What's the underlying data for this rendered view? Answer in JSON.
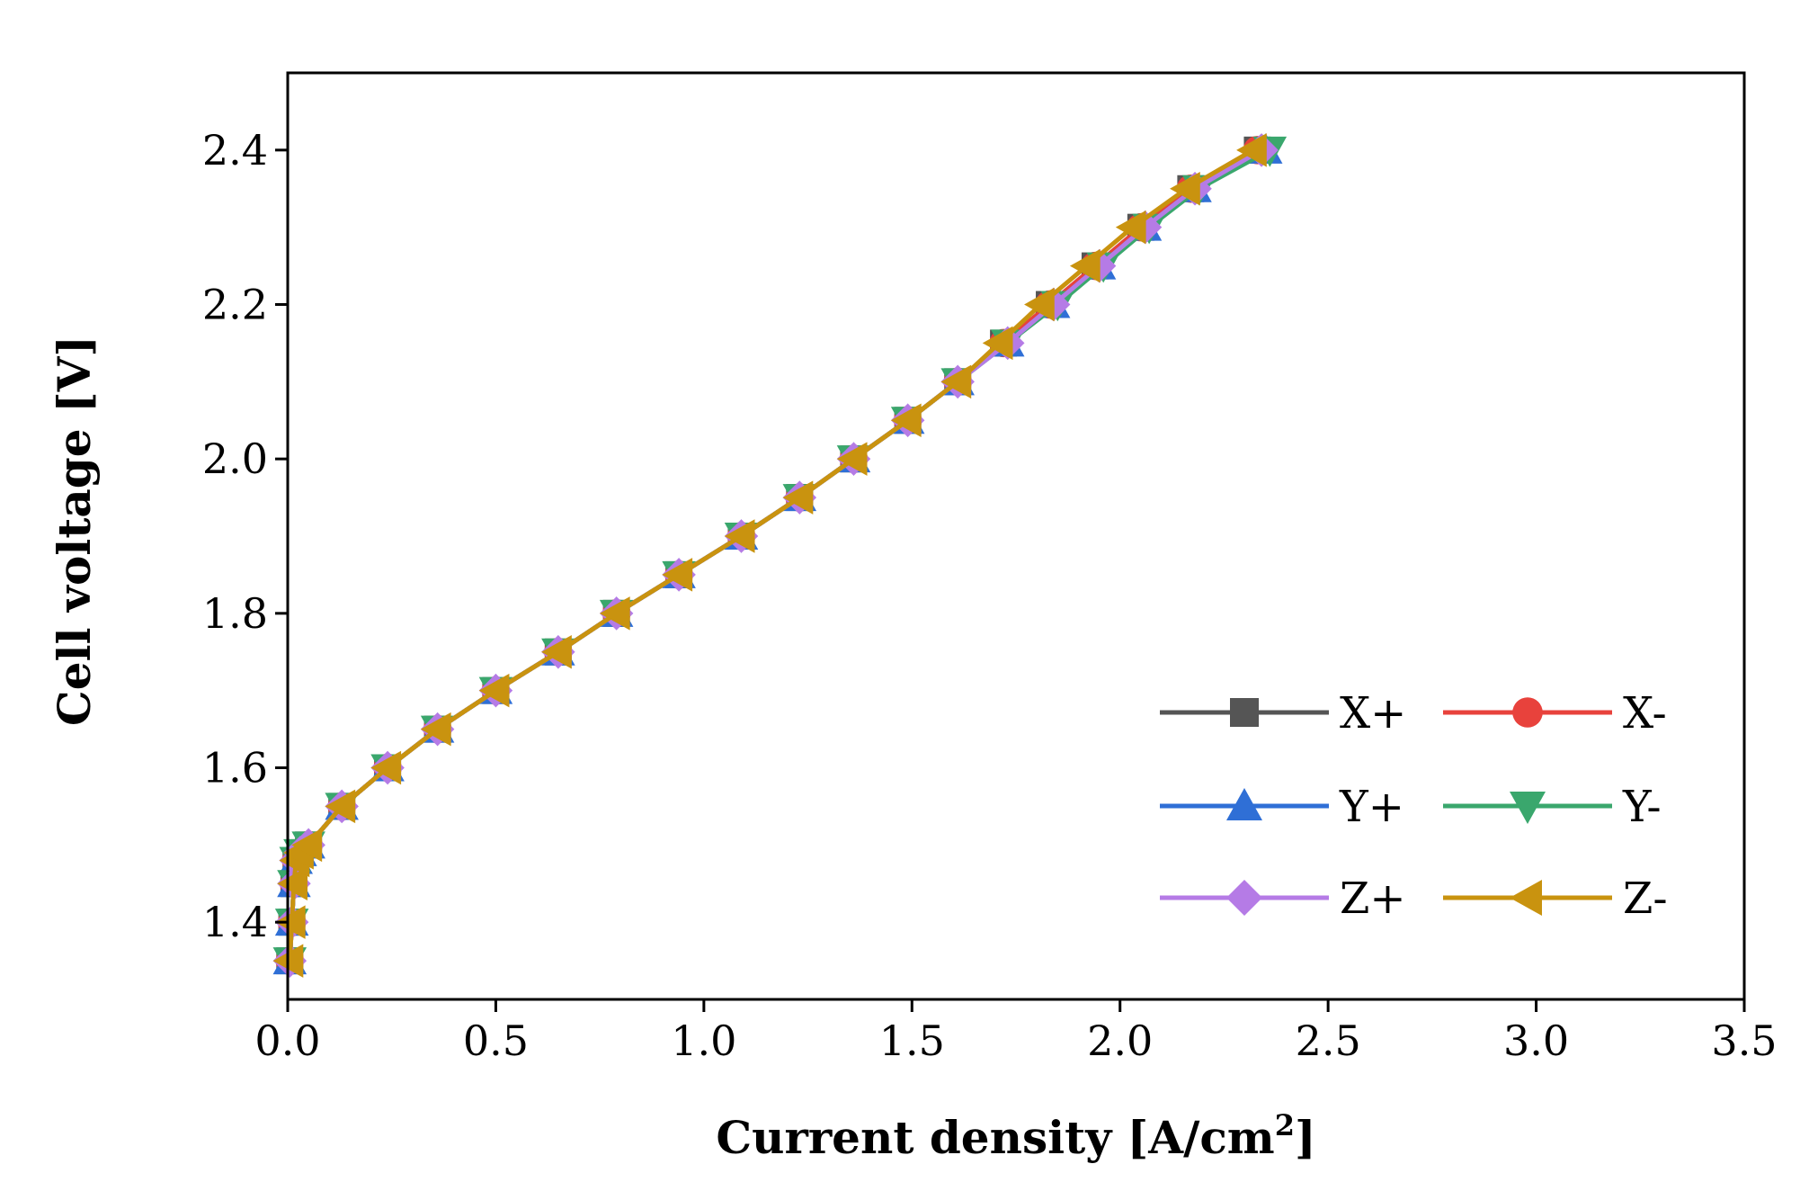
{
  "chart_data": {
    "type": "line",
    "xlabel": "Current density [A/cm",
    "xlabel_superscript": "2",
    "xlabel_suffix": "]",
    "ylabel": "Cell voltage [V]",
    "xlim": [
      0,
      3.5
    ],
    "ylim": [
      1.3,
      2.5
    ],
    "x_ticks": [
      0.0,
      0.5,
      1.0,
      1.5,
      2.0,
      2.5,
      3.0,
      3.5
    ],
    "x_tick_labels": [
      "0.0",
      "0.5",
      "1.0",
      "1.5",
      "2.0",
      "2.5",
      "3.0",
      "3.5"
    ],
    "y_ticks": [
      1.4,
      1.6,
      1.8,
      2.0,
      2.2,
      2.4
    ],
    "y_tick_labels": [
      "1.4",
      "1.6",
      "1.8",
      "2.0",
      "2.2",
      "2.4"
    ],
    "grid": false,
    "legend_position": "bottom-right",
    "series": [
      {
        "name": "X+",
        "color": "#555555",
        "marker": "square",
        "x": [
          0.005,
          0.01,
          0.015,
          0.02,
          0.03,
          0.05,
          0.13,
          0.24,
          0.36,
          0.5,
          0.65,
          0.79,
          0.94,
          1.09,
          1.23,
          1.36,
          1.49,
          1.61,
          1.72,
          1.83,
          1.94,
          2.05,
          2.17,
          2.33
        ],
        "y": [
          1.35,
          1.4,
          1.45,
          1.48,
          1.49,
          1.5,
          1.55,
          1.6,
          1.65,
          1.7,
          1.75,
          1.8,
          1.85,
          1.9,
          1.95,
          2.0,
          2.05,
          2.1,
          2.15,
          2.2,
          2.25,
          2.3,
          2.35,
          2.4
        ]
      },
      {
        "name": "X-",
        "color": "#e8423c",
        "marker": "circle",
        "x": [
          0.005,
          0.01,
          0.015,
          0.02,
          0.03,
          0.05,
          0.13,
          0.24,
          0.36,
          0.5,
          0.65,
          0.79,
          0.94,
          1.09,
          1.23,
          1.36,
          1.49,
          1.61,
          1.72,
          1.83,
          1.94,
          2.05,
          2.17,
          2.33
        ],
        "y": [
          1.35,
          1.4,
          1.45,
          1.48,
          1.49,
          1.5,
          1.55,
          1.6,
          1.65,
          1.7,
          1.75,
          1.8,
          1.85,
          1.9,
          1.95,
          2.0,
          2.05,
          2.1,
          2.15,
          2.2,
          2.25,
          2.3,
          2.35,
          2.4
        ]
      },
      {
        "name": "Y+",
        "color": "#2f6fd6",
        "marker": "triangle-up",
        "x": [
          0.005,
          0.01,
          0.015,
          0.02,
          0.03,
          0.05,
          0.13,
          0.24,
          0.36,
          0.5,
          0.65,
          0.79,
          0.94,
          1.09,
          1.23,
          1.36,
          1.49,
          1.61,
          1.73,
          1.84,
          1.95,
          2.06,
          2.18,
          2.35
        ],
        "y": [
          1.35,
          1.4,
          1.45,
          1.48,
          1.49,
          1.5,
          1.55,
          1.6,
          1.65,
          1.7,
          1.75,
          1.8,
          1.85,
          1.9,
          1.95,
          2.0,
          2.05,
          2.1,
          2.15,
          2.2,
          2.25,
          2.3,
          2.35,
          2.4
        ]
      },
      {
        "name": "Y-",
        "color": "#3aa76d",
        "marker": "triangle-down",
        "x": [
          0.005,
          0.01,
          0.015,
          0.02,
          0.03,
          0.05,
          0.13,
          0.24,
          0.36,
          0.5,
          0.65,
          0.79,
          0.94,
          1.09,
          1.23,
          1.36,
          1.49,
          1.61,
          1.73,
          1.85,
          1.96,
          2.07,
          2.19,
          2.36
        ],
        "y": [
          1.35,
          1.4,
          1.45,
          1.48,
          1.49,
          1.5,
          1.55,
          1.6,
          1.65,
          1.7,
          1.75,
          1.8,
          1.85,
          1.9,
          1.95,
          2.0,
          2.05,
          2.1,
          2.15,
          2.2,
          2.25,
          2.3,
          2.35,
          2.4
        ]
      },
      {
        "name": "Z+",
        "color": "#b57be6",
        "marker": "diamond",
        "x": [
          0.005,
          0.01,
          0.015,
          0.02,
          0.03,
          0.05,
          0.13,
          0.24,
          0.36,
          0.5,
          0.65,
          0.79,
          0.94,
          1.09,
          1.23,
          1.36,
          1.49,
          1.61,
          1.73,
          1.84,
          1.95,
          2.06,
          2.18,
          2.34
        ],
        "y": [
          1.35,
          1.4,
          1.45,
          1.48,
          1.49,
          1.5,
          1.55,
          1.6,
          1.65,
          1.7,
          1.75,
          1.8,
          1.85,
          1.9,
          1.95,
          2.0,
          2.05,
          2.1,
          2.15,
          2.2,
          2.25,
          2.3,
          2.35,
          2.4
        ]
      },
      {
        "name": "Z-",
        "color": "#c9930f",
        "marker": "triangle-left",
        "x": [
          0.005,
          0.01,
          0.015,
          0.02,
          0.03,
          0.05,
          0.13,
          0.24,
          0.36,
          0.5,
          0.65,
          0.79,
          0.94,
          1.09,
          1.23,
          1.36,
          1.49,
          1.61,
          1.71,
          1.81,
          1.92,
          2.03,
          2.16,
          2.32
        ],
        "y": [
          1.35,
          1.4,
          1.45,
          1.48,
          1.49,
          1.5,
          1.55,
          1.6,
          1.65,
          1.7,
          1.75,
          1.8,
          1.85,
          1.9,
          1.95,
          2.0,
          2.05,
          2.1,
          2.15,
          2.2,
          2.25,
          2.3,
          2.35,
          2.4
        ]
      }
    ]
  }
}
